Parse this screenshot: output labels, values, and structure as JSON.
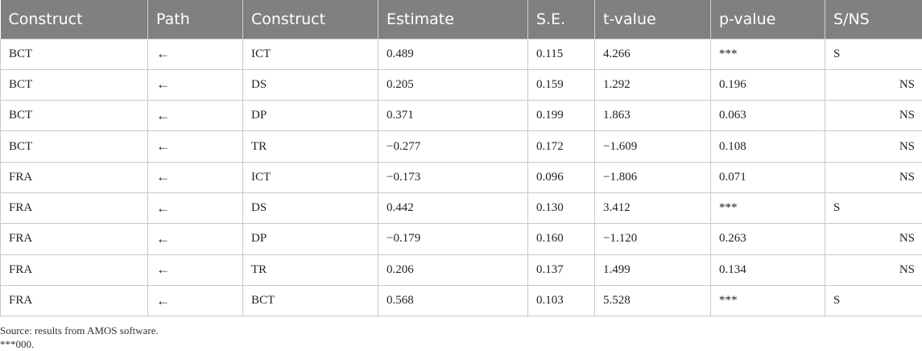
{
  "table": {
    "headers": [
      "Construct",
      "Path",
      "Construct",
      "Estimate",
      "S.E.",
      "t-value",
      "p-value",
      "S/NS"
    ],
    "rows": [
      [
        "BCT",
        "←",
        "ICT",
        "0.489",
        "0.115",
        "4.266",
        "***",
        "S"
      ],
      [
        "BCT",
        "←",
        "DS",
        "0.205",
        "0.159",
        "1.292",
        "0.196",
        "NS"
      ],
      [
        "BCT",
        "←",
        "DP",
        "0.371",
        "0.199",
        "1.863",
        "0.063",
        "NS"
      ],
      [
        "BCT",
        "←",
        "TR",
        "−0.277",
        "0.172",
        "−1.609",
        "0.108",
        "NS"
      ],
      [
        "FRA",
        "←",
        "ICT",
        "−0.173",
        "0.096",
        "−1.806",
        "0.071",
        "NS"
      ],
      [
        "FRA",
        "←",
        "DS",
        "0.442",
        "0.130",
        "3.412",
        "***",
        "S"
      ],
      [
        "FRA",
        "←",
        "DP",
        "−0.179",
        "0.160",
        "−1.120",
        "0.263",
        "NS"
      ],
      [
        "FRA",
        "←",
        "TR",
        "0.206",
        "0.137",
        "1.499",
        "0.134",
        "NS"
      ],
      [
        "FRA",
        "←",
        "BCT",
        "0.568",
        "0.103",
        "5.528",
        "***",
        "S"
      ]
    ]
  },
  "notes": {
    "source": "Source: results from AMOS software.",
    "footnote": "***000."
  },
  "colors": {
    "header_background": "#808080",
    "header_text": "#ffffff",
    "grid_lines": "#c8c8c8"
  }
}
